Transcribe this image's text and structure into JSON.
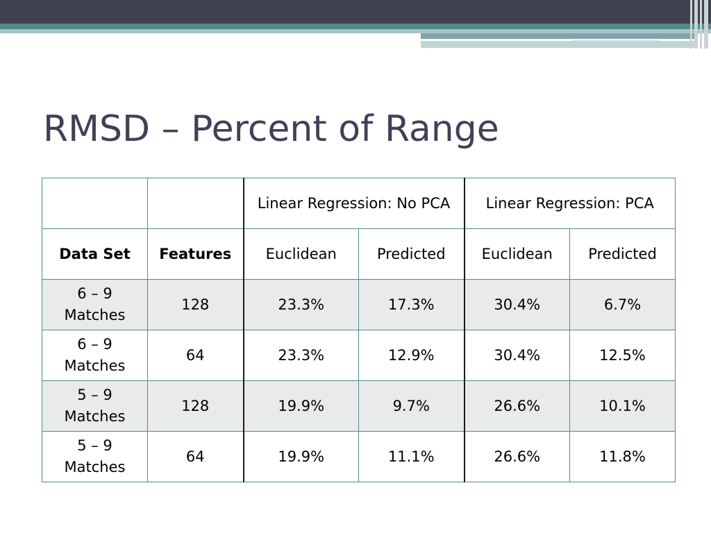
{
  "slide": {
    "title": "RMSD – Percent of Range"
  },
  "table": {
    "group_headers": [
      "",
      "",
      "Linear Regression: No PCA",
      "Linear Regression: PCA"
    ],
    "column_headers": [
      "Data Set",
      "Features",
      "Euclidean",
      "Predicted",
      "Euclidean",
      "Predicted"
    ],
    "rows": [
      [
        "6 – 9 Matches",
        "128",
        "23.3%",
        "17.3%",
        "30.4%",
        "6.7%"
      ],
      [
        "6 – 9 Matches",
        "64",
        "23.3%",
        "12.9%",
        "30.4%",
        "12.5%"
      ],
      [
        "5 – 9 Matches",
        "128",
        "19.9%",
        "9.7%",
        "26.6%",
        "10.1%"
      ],
      [
        "5 – 9 Matches",
        "64",
        "19.9%",
        "11.1%",
        "26.6%",
        "11.8%"
      ]
    ]
  },
  "colors": {
    "title": "#3f4158",
    "top_bar": "#40414f",
    "accent": "#4f8a8b",
    "row_shade": "#e9eaec"
  }
}
